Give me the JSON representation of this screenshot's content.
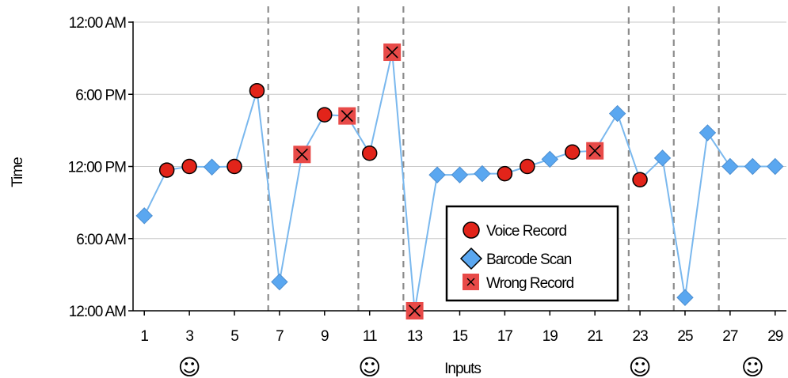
{
  "chart_data": {
    "type": "line",
    "xlabel": "Inputs",
    "ylabel": "Time",
    "xlim": [
      0.5,
      29.5
    ],
    "ylim_hours": [
      0,
      24
    ],
    "y_ticks": [
      {
        "hour": 0,
        "label": "12:00 AM"
      },
      {
        "hour": 6,
        "label": "6:00 AM"
      },
      {
        "hour": 12,
        "label": "12:00 PM"
      },
      {
        "hour": 18,
        "label": "6:00 PM"
      },
      {
        "hour": 24,
        "label": "12:00 AM"
      }
    ],
    "x_ticks": [
      1,
      3,
      5,
      7,
      9,
      11,
      13,
      15,
      17,
      19,
      21,
      23,
      25,
      27,
      29
    ],
    "x_tick_labels": [
      "1",
      "3",
      "5",
      "7",
      "9",
      "11",
      "13",
      "15",
      "17",
      "19",
      "21",
      "23",
      "25",
      "27",
      "29"
    ],
    "smiley": "☺",
    "smiley_positions": [
      3,
      11,
      23,
      28
    ],
    "separators": [
      6.5,
      10.5,
      12.5,
      22.5,
      24.5,
      26.5
    ],
    "grid": true,
    "legend_position": "bottom-right",
    "series": [
      {
        "name": "Voice Record",
        "marker": "circle",
        "color": "#e2241a"
      },
      {
        "name": "Barcode Scan",
        "marker": "diamond",
        "color": "#5aa7f0"
      },
      {
        "name": "Wrong Record",
        "marker": "square-x",
        "color": "#e84a48"
      }
    ],
    "points": [
      {
        "x": 1,
        "y": 7.9,
        "type": "Barcode Scan"
      },
      {
        "x": 2,
        "y": 11.7,
        "type": "Voice Record"
      },
      {
        "x": 3,
        "y": 12.0,
        "type": "Voice Record"
      },
      {
        "x": 4,
        "y": 11.95,
        "type": "Barcode Scan"
      },
      {
        "x": 5,
        "y": 12.0,
        "type": "Voice Record"
      },
      {
        "x": 6,
        "y": 18.3,
        "type": "Voice Record"
      },
      {
        "x": 7,
        "y": 2.4,
        "type": "Barcode Scan"
      },
      {
        "x": 8,
        "y": 13.0,
        "type": "Wrong Record"
      },
      {
        "x": 9,
        "y": 16.3,
        "type": "Voice Record"
      },
      {
        "x": 10,
        "y": 16.2,
        "type": "Wrong Record"
      },
      {
        "x": 11,
        "y": 13.1,
        "type": "Voice Record"
      },
      {
        "x": 12,
        "y": 21.5,
        "type": "Wrong Record"
      },
      {
        "x": 13,
        "y": 0.0,
        "type": "Wrong Record"
      },
      {
        "x": 14,
        "y": 11.3,
        "type": "Barcode Scan"
      },
      {
        "x": 15,
        "y": 11.3,
        "type": "Barcode Scan"
      },
      {
        "x": 16,
        "y": 11.4,
        "type": "Barcode Scan"
      },
      {
        "x": 17,
        "y": 11.4,
        "type": "Voice Record"
      },
      {
        "x": 18,
        "y": 12.0,
        "type": "Voice Record"
      },
      {
        "x": 19,
        "y": 12.6,
        "type": "Barcode Scan"
      },
      {
        "x": 20,
        "y": 13.2,
        "type": "Voice Record"
      },
      {
        "x": 21,
        "y": 13.3,
        "type": "Wrong Record"
      },
      {
        "x": 22,
        "y": 16.4,
        "type": "Barcode Scan"
      },
      {
        "x": 23,
        "y": 10.9,
        "type": "Voice Record"
      },
      {
        "x": 24,
        "y": 12.7,
        "type": "Barcode Scan"
      },
      {
        "x": 25,
        "y": 1.1,
        "type": "Barcode Scan"
      },
      {
        "x": 26,
        "y": 14.8,
        "type": "Barcode Scan"
      },
      {
        "x": 27,
        "y": 12.0,
        "type": "Barcode Scan"
      },
      {
        "x": 28,
        "y": 12.0,
        "type": "Barcode Scan"
      },
      {
        "x": 29,
        "y": 12.0,
        "type": "Barcode Scan"
      }
    ]
  }
}
